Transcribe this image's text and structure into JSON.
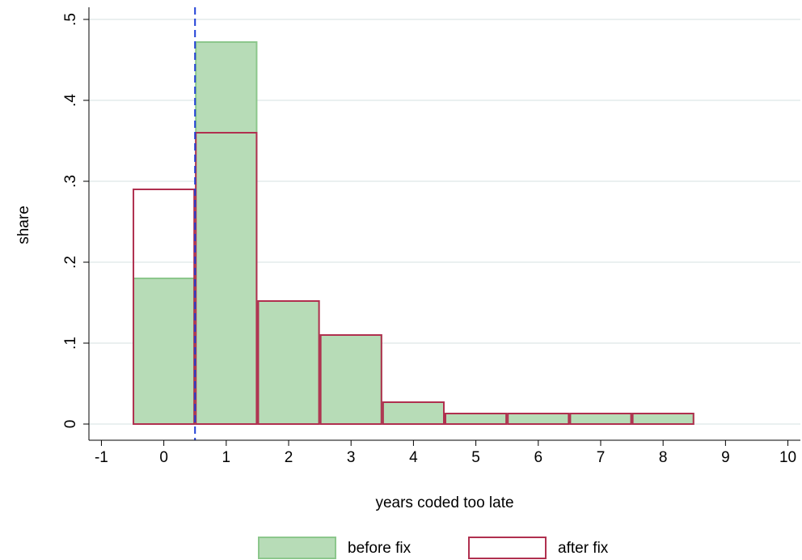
{
  "chart_data": {
    "type": "histogram",
    "xlabel": "years coded too late",
    "ylabel": "share",
    "bins": [
      -0.5,
      0.5,
      1.5,
      2.5,
      3.5,
      4.5,
      5.5,
      6.5,
      7.5,
      8.5
    ],
    "series": [
      {
        "name": "before fix",
        "color": "#b7dcb7",
        "edgecolor": "#8cc78c",
        "fill": true,
        "values": [
          0.18,
          0.472,
          0.152,
          0.11,
          0.027,
          0.013,
          0.013,
          0.013,
          0.013
        ]
      },
      {
        "name": "after fix",
        "color": "#b0304f",
        "fill": false,
        "values": [
          0.29,
          0.36,
          0.152,
          0.11,
          0.027,
          0.013,
          0.013,
          0.013,
          0.013
        ]
      }
    ],
    "xline": 0.5,
    "xline_color": "#1f3fd6",
    "xlim": [
      -1.2,
      10.2
    ],
    "xticks": [
      -1,
      0,
      1,
      2,
      3,
      4,
      5,
      6,
      7,
      8,
      9,
      10
    ],
    "ylim": [
      -0.02,
      0.515
    ],
    "yticks": [
      0,
      {
        "value": 0.1,
        "label": ".1"
      },
      {
        "value": 0.2,
        "label": ".2"
      },
      {
        "value": 0.3,
        "label": ".3"
      },
      {
        "value": 0.4,
        "label": ".4"
      },
      {
        "value": 0.5,
        "label": ".5"
      }
    ],
    "grid": true,
    "legend": "bottom"
  }
}
